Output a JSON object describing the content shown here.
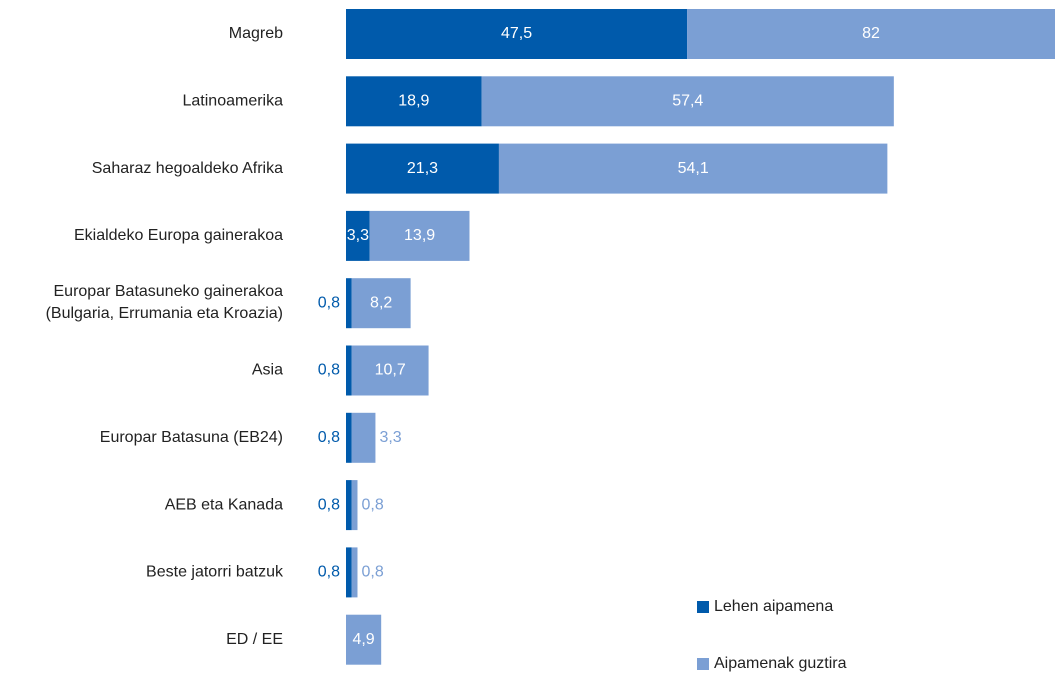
{
  "chart_data": {
    "type": "stacked_bar_horizontal",
    "categories": [
      "Magreb",
      "Latinoamerika",
      "Saharaz hegoaldeko Afrika",
      "Ekialdeko Europa gainerakoa",
      "Europar Batasuneko gainerakoa\n(Bulgaria, Errumania eta Kroazia)",
      "Asia",
      "Europar Batasuna (EB24)",
      "AEB eta Kanada",
      "Beste jatorri batzuk",
      "ED / EE"
    ],
    "series": [
      {
        "name": "Lehen aipamena",
        "color": "#005aab",
        "values": [
          47.5,
          18.9,
          21.3,
          3.3,
          0.8,
          0.8,
          0.8,
          0.8,
          0.8,
          null
        ],
        "value_labels": [
          "47,5",
          "18,9",
          "21,3",
          "3,3",
          "0,8",
          "0,8",
          "0,8",
          "0,8",
          "0,8",
          null
        ]
      },
      {
        "name": "Aipamenak guztira",
        "color": "#7b9fd4",
        "values": [
          82,
          57.4,
          54.1,
          13.9,
          8.2,
          10.7,
          3.3,
          0.8,
          0.8,
          4.9
        ],
        "value_labels": [
          "82",
          "57,4",
          "54,1",
          "13,9",
          "8,2",
          "10,7",
          "3,3",
          "0,8",
          "0,8",
          "4,9"
        ]
      }
    ],
    "legend": "bottom-right"
  }
}
